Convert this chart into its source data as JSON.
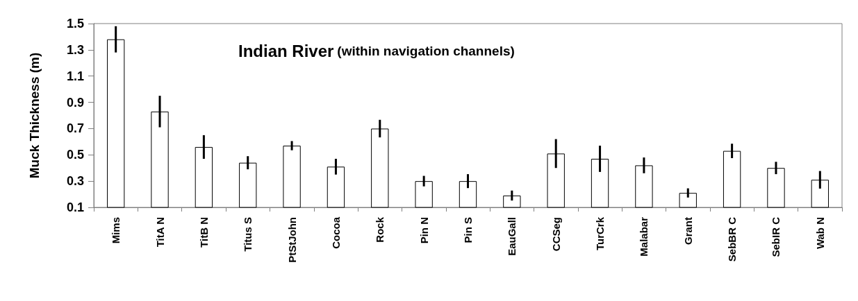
{
  "chart_data": {
    "type": "bar",
    "title": "Indian River",
    "subtitle": "(within navigation channels)",
    "ylabel": "Muck Thickness (m)",
    "categories": [
      "Mims",
      "TitA N",
      "TitB N",
      "Titus S",
      "PtStJohn",
      "Cocoa",
      "Rock",
      "Pin N",
      "Pin S",
      "EauGall",
      "CCSeg",
      "TurCrk",
      "Malabar",
      "Grant",
      "SebBR C",
      "SebIR C",
      "Wab N"
    ],
    "values": [
      1.38,
      0.83,
      0.56,
      0.44,
      0.57,
      0.41,
      0.7,
      0.3,
      0.3,
      0.19,
      0.51,
      0.47,
      0.42,
      0.21,
      0.53,
      0.4,
      0.31
    ],
    "errors": [
      0.1,
      0.12,
      0.09,
      0.05,
      0.035,
      0.06,
      0.067,
      0.04,
      0.053,
      0.038,
      0.11,
      0.1,
      0.06,
      0.035,
      0.055,
      0.047,
      0.067
    ],
    "color": "#ffffff",
    "ylim": [
      0.1,
      1.5
    ],
    "yticks": [
      0.1,
      0.3,
      0.5,
      0.7,
      0.9,
      1.1,
      1.3,
      1.5
    ],
    "grid": false
  }
}
